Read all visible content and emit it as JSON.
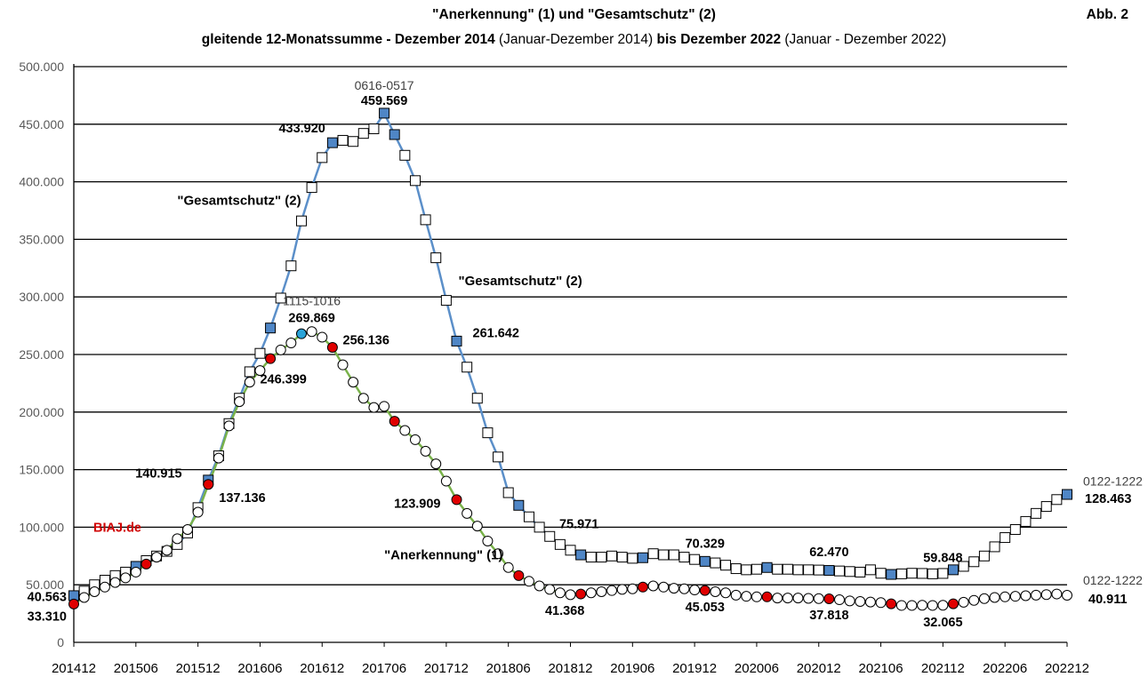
{
  "chart_data": {
    "type": "line",
    "title": "\"Anerkennung\" (1) und \"Gesamtschutz\" (2)",
    "subtitle": {
      "p1": "gleitende 12-Monatssumme - Dezember 2014",
      "p2": " (Januar-Dezember 2014)",
      "p3": " bis Dezember 2022",
      "p4": " (Januar - Dezember 2022)"
    },
    "figure_label": "Abb. 2",
    "watermark": "BIAJ.de",
    "ylim": [
      0,
      500000
    ],
    "yticks": [
      {
        "v": 0,
        "label": "0"
      },
      {
        "v": 50000,
        "label": "50.000"
      },
      {
        "v": 100000,
        "label": "100.000"
      },
      {
        "v": 150000,
        "label": "150.000"
      },
      {
        "v": 200000,
        "label": "200.000"
      },
      {
        "v": 250000,
        "label": "250.000"
      },
      {
        "v": 300000,
        "label": "300.000"
      },
      {
        "v": 350000,
        "label": "350.000"
      },
      {
        "v": 400000,
        "label": "400.000"
      },
      {
        "v": 450000,
        "label": "450.000"
      },
      {
        "v": 500000,
        "label": "500.000"
      }
    ],
    "xticks": [
      "201412",
      "201506",
      "201512",
      "201606",
      "201612",
      "201706",
      "201712",
      "201806",
      "201812",
      "201906",
      "201912",
      "202006",
      "202012",
      "202106",
      "202112",
      "202206",
      "202212"
    ],
    "series": [
      {
        "name": "\"Gesamtschutz\" (2)",
        "line_color": "#5b8fc9",
        "marker": "square",
        "highlight_color": "#4f86c6",
        "values": [
          40563,
          44500,
          50000,
          54000,
          58000,
          61000,
          66000,
          71000,
          75000,
          79000,
          85000,
          95000,
          117000,
          140915,
          162000,
          190000,
          212000,
          235000,
          251000,
          273000,
          299000,
          327000,
          366000,
          395000,
          421000,
          433920,
          436000,
          435000,
          442000,
          446000,
          459569,
          441000,
          423000,
          401000,
          367000,
          334000,
          297000,
          261642,
          239000,
          212000,
          182000,
          161000,
          130000,
          119000,
          109000,
          100000,
          92000,
          85000,
          80000,
          75971,
          74000,
          74000,
          75000,
          74000,
          73000,
          73500,
          77000,
          76000,
          76000,
          74000,
          72000,
          70329,
          69000,
          67000,
          64000,
          63000,
          63500,
          65000,
          63500,
          63500,
          63000,
          63000,
          62800,
          62470,
          62000,
          61500,
          61000,
          63000,
          60000,
          59000,
          59500,
          60000,
          59848,
          59500,
          59848,
          63000,
          66000,
          70000,
          75000,
          83000,
          91000,
          98000,
          105000,
          112000,
          118000,
          124000,
          128463
        ],
        "highlight_idx": [
          0,
          6,
          13,
          19,
          25,
          30,
          31,
          37,
          43,
          49,
          55,
          61,
          67,
          73,
          79,
          85,
          96
        ]
      },
      {
        "name": "\"Anerkennung\" (1)",
        "line_color": "#79b24a",
        "marker": "circle",
        "highlight_color": "#e00000",
        "values": [
          33310,
          39000,
          44000,
          48000,
          52000,
          56000,
          61000,
          68000,
          74000,
          80000,
          90000,
          98000,
          113000,
          137136,
          160000,
          188000,
          209000,
          226000,
          236000,
          246399,
          254000,
          260000,
          268000,
          269869,
          265000,
          256136,
          241000,
          226000,
          212000,
          204000,
          205000,
          192000,
          184000,
          176000,
          166000,
          155000,
          140000,
          123909,
          112000,
          101000,
          88000,
          77000,
          65000,
          58000,
          53000,
          49000,
          46000,
          43000,
          41368,
          42000,
          43000,
          44000,
          45000,
          46000,
          46500,
          48000,
          49000,
          48000,
          47000,
          46500,
          45500,
          45053,
          44000,
          43000,
          41000,
          40000,
          39500,
          39500,
          38500,
          38500,
          38500,
          38200,
          38000,
          37818,
          37000,
          36000,
          35500,
          35000,
          34500,
          33500,
          32065,
          32065,
          32200,
          32065,
          32200,
          33500,
          34800,
          36500,
          38000,
          39000,
          39500,
          40000,
          40500,
          41000,
          41500,
          42000,
          40911
        ],
        "highlight_idx": [
          0,
          7,
          13,
          19,
          25,
          31,
          37,
          43,
          49,
          55,
          61,
          67,
          73,
          79,
          85
        ],
        "special_idx": 22,
        "special_color": "#2aa3d8"
      }
    ],
    "annotations": [
      {
        "text": "0616-0517",
        "v": 480000,
        "i": 30,
        "dx": 0,
        "anchor": "middle",
        "bold": false,
        "size": 14
      },
      {
        "text": "459.569",
        "v": 467000,
        "i": 30,
        "dx": 0,
        "anchor": "middle",
        "bold": true,
        "size": 14.5
      },
      {
        "text": "433.920",
        "v": 443000,
        "i": 25,
        "dx": -8,
        "anchor": "end",
        "bold": true,
        "size": 14.5
      },
      {
        "text": "\"Gesamtschutz\" (2)",
        "v": 380000,
        "i": 10,
        "dx": 0,
        "anchor": "start",
        "bold": true,
        "size": 15
      },
      {
        "text": "\"Gesamtschutz\" (2)",
        "v": 310000,
        "i": 37,
        "dx": 2,
        "anchor": "start",
        "bold": true,
        "size": 15
      },
      {
        "text": "1115-1016",
        "v": 293000,
        "i": 23,
        "dx": 0,
        "anchor": "middle",
        "bold": false,
        "size": 14
      },
      {
        "text": "269.869",
        "v": 278000,
        "i": 23,
        "dx": 0,
        "anchor": "middle",
        "bold": true,
        "size": 14.5
      },
      {
        "text": "256.136",
        "v": 259000,
        "i": 26,
        "dx": 0,
        "anchor": "start",
        "bold": true,
        "size": 14.5
      },
      {
        "text": "246.399",
        "v": 225000,
        "i": 18,
        "dx": 0,
        "anchor": "start",
        "bold": true,
        "size": 14.5
      },
      {
        "text": "261.642",
        "v": 265000,
        "i": 37,
        "dx": 18,
        "anchor": "start",
        "bold": true,
        "size": 14.5
      },
      {
        "text": "140.915",
        "v": 143000,
        "i": 12,
        "dx": -18,
        "anchor": "end",
        "bold": true,
        "size": 14.5
      },
      {
        "text": "137.136",
        "v": 122000,
        "i": 13,
        "dx": 12,
        "anchor": "start",
        "bold": true,
        "size": 14.5
      },
      {
        "text": "123.909",
        "v": 117000,
        "i": 37,
        "dx": -18,
        "anchor": "end",
        "bold": true,
        "size": 14.5
      },
      {
        "text": "\"Anerkennung\" (1)",
        "v": 72000,
        "i": 30,
        "dx": 0,
        "anchor": "start",
        "bold": true,
        "size": 15
      },
      {
        "text": "75.971",
        "v": 99000,
        "i": 49,
        "dx": -2,
        "anchor": "middle",
        "bold": true,
        "size": 14.5
      },
      {
        "text": "41.368",
        "v": 24000,
        "i": 49,
        "dx": -18,
        "anchor": "middle",
        "bold": true,
        "size": 14.5
      },
      {
        "text": "70.329",
        "v": 82000,
        "i": 61,
        "dx": 0,
        "anchor": "middle",
        "bold": true,
        "size": 14.5
      },
      {
        "text": "45.053",
        "v": 27000,
        "i": 61,
        "dx": 0,
        "anchor": "middle",
        "bold": true,
        "size": 14.5
      },
      {
        "text": "62.470",
        "v": 75000,
        "i": 73,
        "dx": 0,
        "anchor": "middle",
        "bold": true,
        "size": 14.5
      },
      {
        "text": "37.818",
        "v": 20000,
        "i": 73,
        "dx": 0,
        "anchor": "middle",
        "bold": true,
        "size": 14.5
      },
      {
        "text": "59.848",
        "v": 70000,
        "i": 84,
        "dx": 0,
        "anchor": "middle",
        "bold": true,
        "size": 14.5
      },
      {
        "text": "32.065",
        "v": 14000,
        "i": 84,
        "dx": 0,
        "anchor": "middle",
        "bold": true,
        "size": 14.5
      },
      {
        "text": "0122-1222",
        "v": 136000,
        "i": 96,
        "dx": 18,
        "anchor": "start",
        "bold": false,
        "size": 14
      },
      {
        "text": "128.463",
        "v": 121000,
        "i": 96,
        "dx": 20,
        "anchor": "start",
        "bold": true,
        "size": 14.5
      },
      {
        "text": "0122-1222",
        "v": 50000,
        "i": 96,
        "dx": 18,
        "anchor": "start",
        "bold": false,
        "size": 14
      },
      {
        "text": "40.911",
        "v": 34000,
        "i": 96,
        "dx": 24,
        "anchor": "start",
        "bold": true,
        "size": 14.5
      },
      {
        "text": "40.563",
        "v": 36000,
        "i": 0,
        "dx": -8,
        "anchor": "end",
        "bold": true,
        "size": 14.5
      },
      {
        "text": "33.310",
        "v": 19000,
        "i": 0,
        "dx": -8,
        "anchor": "end",
        "bold": true,
        "size": 14.5
      }
    ]
  }
}
